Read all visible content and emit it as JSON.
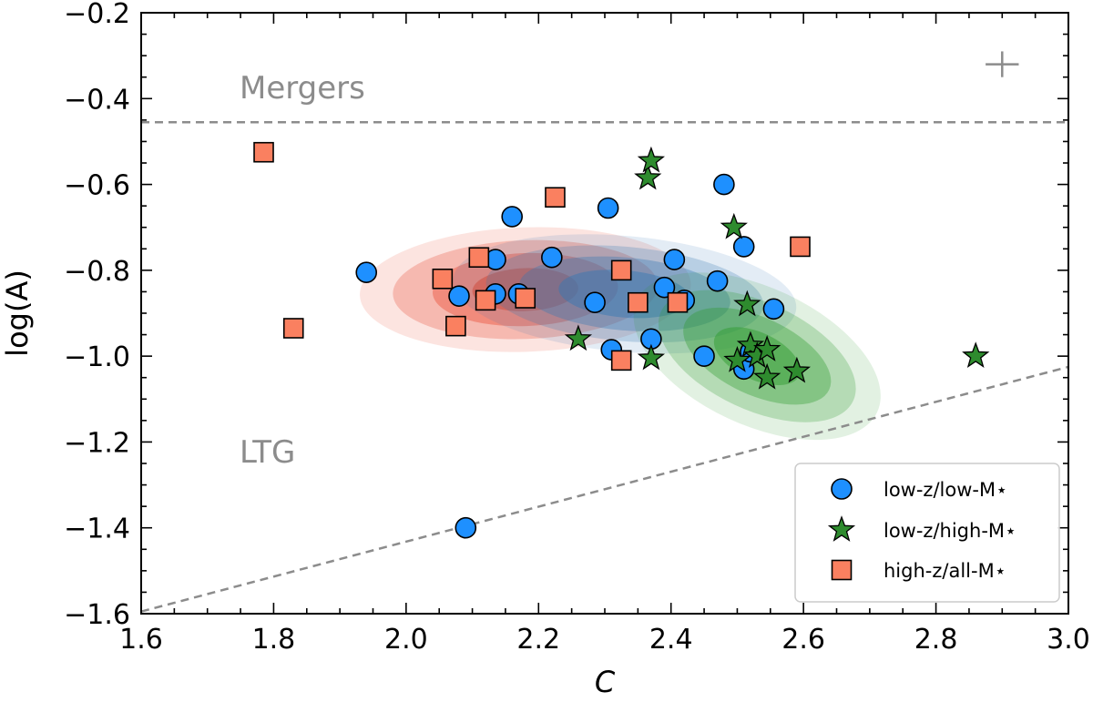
{
  "chart_data": {
    "type": "scatter",
    "xlabel": "C",
    "ylabel": "log(A)",
    "xlim": [
      1.6,
      3.0
    ],
    "ylim": [
      -1.6,
      -0.2
    ],
    "x_ticks": [
      "1.6",
      "1.8",
      "2.0",
      "2.2",
      "2.4",
      "2.6",
      "2.8",
      "3.0"
    ],
    "y_ticks": [
      "−1.6",
      "−1.4",
      "−1.2",
      "−1.0",
      "−0.8",
      "−0.6",
      "−0.4",
      "−0.2"
    ],
    "x_tick_values": [
      1.6,
      1.8,
      2.0,
      2.2,
      2.4,
      2.6,
      2.8,
      3.0
    ],
    "y_tick_values": [
      -1.6,
      -1.4,
      -1.2,
      -1.0,
      -0.8,
      -0.6,
      -0.4,
      -0.2
    ],
    "grid": false,
    "legend_position": "bottom-right",
    "colors": {
      "low_z_low_m": "#1e90ff",
      "low_z_high_m": "#2e8b2e",
      "high_z_all_m": "#fa8060",
      "guide_lines": "#8c8c8c"
    },
    "annotations": {
      "mergers_label": "Mergers",
      "ltg_label": "LTG",
      "error_cross": {
        "x": 2.9,
        "y": -0.32,
        "dx": 0.025,
        "dy": 0.03
      }
    },
    "reference_lines": [
      {
        "name": "merger-boundary",
        "style": "dashed",
        "x": [
          1.6,
          3.0
        ],
        "y": [
          -0.455,
          -0.455
        ]
      },
      {
        "name": "ltg-boundary",
        "style": "dashed",
        "x": [
          1.6,
          3.0
        ],
        "y": [
          -1.595,
          -1.025
        ]
      }
    ],
    "contours": [
      {
        "series": "high-z/all-M⋆",
        "color": "#e8391f",
        "cx": 2.18,
        "cy": -0.845,
        "rx_data": [
          0.25,
          0.2,
          0.14,
          0.08
        ],
        "ry_data": [
          0.145,
          0.115,
          0.085,
          0.05
        ],
        "angle_deg": -2
      },
      {
        "series": "low-z/low-M⋆",
        "color": "#3478b4",
        "cx": 2.33,
        "cy": -0.855,
        "rx_data": [
          0.26,
          0.21,
          0.16,
          0.1
        ],
        "ry_data": [
          0.135,
          0.11,
          0.085,
          0.055
        ],
        "angle_deg": 5
      },
      {
        "series": "low-z/high-M⋆",
        "color": "#2c9a2c",
        "cx": 2.53,
        "cy": -1.0,
        "rx_data": [
          0.2,
          0.16,
          0.12,
          0.07
        ],
        "ry_data": [
          0.16,
          0.125,
          0.09,
          0.055
        ],
        "angle_deg": 25
      }
    ],
    "series": [
      {
        "name": "low-z/low-M⋆",
        "marker": "circle",
        "points": [
          [
            1.94,
            -0.805
          ],
          [
            2.08,
            -0.86
          ],
          [
            2.135,
            -0.775
          ],
          [
            2.135,
            -0.855
          ],
          [
            2.16,
            -0.675
          ],
          [
            2.17,
            -0.855
          ],
          [
            2.22,
            -0.77
          ],
          [
            2.285,
            -0.875
          ],
          [
            2.305,
            -0.655
          ],
          [
            2.31,
            -0.985
          ],
          [
            2.37,
            -0.96
          ],
          [
            2.39,
            -0.84
          ],
          [
            2.405,
            -0.775
          ],
          [
            2.42,
            -0.87
          ],
          [
            2.45,
            -1.0
          ],
          [
            2.47,
            -0.825
          ],
          [
            2.48,
            -0.6
          ],
          [
            2.51,
            -0.745
          ],
          [
            2.51,
            -1.03
          ],
          [
            2.52,
            -0.99
          ],
          [
            2.555,
            -0.89
          ],
          [
            2.09,
            -1.4
          ]
        ]
      },
      {
        "name": "low-z/high-M⋆",
        "marker": "star",
        "points": [
          [
            2.26,
            -0.96
          ],
          [
            2.365,
            -0.585
          ],
          [
            2.37,
            -0.545
          ],
          [
            2.37,
            -1.005
          ],
          [
            2.495,
            -0.7
          ],
          [
            2.5,
            -1.01
          ],
          [
            2.515,
            -0.88
          ],
          [
            2.52,
            -0.975
          ],
          [
            2.53,
            -1.0
          ],
          [
            2.545,
            -0.985
          ],
          [
            2.545,
            -1.05
          ],
          [
            2.59,
            -1.035
          ],
          [
            2.86,
            -1.0
          ]
        ]
      },
      {
        "name": "high-z/all-M⋆",
        "marker": "square",
        "points": [
          [
            1.785,
            -0.525
          ],
          [
            1.83,
            -0.935
          ],
          [
            2.055,
            -0.82
          ],
          [
            2.075,
            -0.93
          ],
          [
            2.11,
            -0.77
          ],
          [
            2.12,
            -0.87
          ],
          [
            2.18,
            -0.865
          ],
          [
            2.225,
            -0.63
          ],
          [
            2.325,
            -0.8
          ],
          [
            2.325,
            -1.01
          ],
          [
            2.35,
            -0.875
          ],
          [
            2.41,
            -0.875
          ],
          [
            2.595,
            -0.745
          ]
        ]
      }
    ]
  }
}
